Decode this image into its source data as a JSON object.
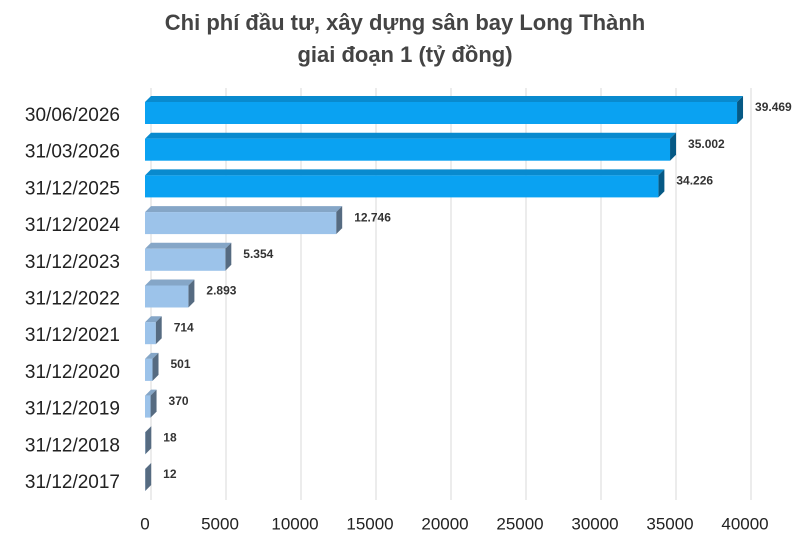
{
  "chart_data": {
    "type": "bar",
    "orientation": "horizontal",
    "title": [
      "Chi phí đầu tư, xây dựng sân bay Long Thành",
      "giai đoạn 1 (tỷ đồng)"
    ],
    "categories": [
      "30/06/2026",
      "31/03/2026",
      "31/12/2025",
      "31/12/2024",
      "31/12/2023",
      "31/12/2022",
      "31/12/2021",
      "31/12/2020",
      "31/12/2019",
      "31/12/2018",
      "31/12/2017"
    ],
    "values": [
      39469,
      35002,
      34226,
      12746,
      5354,
      2893,
      714,
      501,
      370,
      18,
      12
    ],
    "value_labels": [
      "39.469",
      "35.002",
      "34.226",
      "12.746",
      "5.354",
      "2.893",
      "714",
      "501",
      "370",
      "18",
      "12"
    ],
    "colors": [
      "#0aa2f2",
      "#0aa2f2",
      "#0aa2f2",
      "#9cc3ea",
      "#9cc3ea",
      "#9cc3ea",
      "#9cc3ea",
      "#9cc3ea",
      "#9cc3ea",
      "#9cc3ea",
      "#9cc3ea"
    ],
    "xlim": [
      0,
      40000
    ],
    "xticks": [
      0,
      5000,
      10000,
      15000,
      20000,
      25000,
      30000,
      35000,
      40000
    ],
    "grid": true
  }
}
